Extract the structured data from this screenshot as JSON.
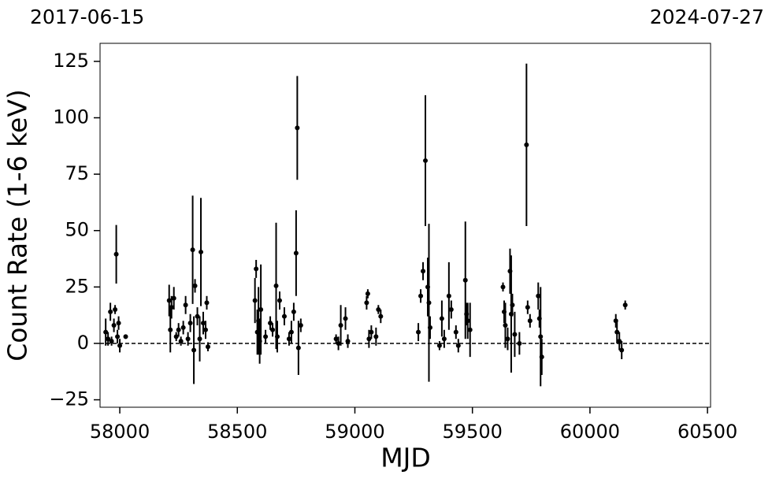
{
  "chart_data": {
    "type": "errorbar_scatter",
    "xlabel": "MJD",
    "ylabel": "Count Rate (1-6 keV)",
    "top_labels": [
      "2017-06-15",
      "2024-07-27"
    ],
    "xlim": [
      57916,
      60513
    ],
    "ylim": [
      -28.3,
      133
    ],
    "xticks": [
      58000,
      58500,
      59000,
      59500,
      60000,
      60500
    ],
    "yticks": [
      {
        "value": -25,
        "label": "−25"
      },
      0,
      25,
      50,
      75,
      100,
      125
    ],
    "hline": 0,
    "color": "#000000",
    "series": [
      {
        "name": "data",
        "color": "#000000",
        "x": [
          57940,
          57950,
          57960,
          57965,
          57975,
          57980,
          57985,
          57990,
          57995,
          58000,
          58025,
          58210,
          58215,
          58220,
          58230,
          58240,
          58250,
          58260,
          58270,
          58280,
          58290,
          58300,
          58310,
          58315,
          58320,
          58330,
          58340,
          58345,
          58355,
          58365,
          58370,
          58375,
          58575,
          58580,
          58585,
          58590,
          58595,
          58600,
          58620,
          58640,
          58650,
          58665,
          58670,
          58680,
          58700,
          58720,
          58730,
          58740,
          58750,
          58755,
          58760,
          58770,
          58920,
          58930,
          58940,
          58960,
          58970,
          59050,
          59055,
          59060,
          59070,
          59090,
          59100,
          59110,
          59270,
          59280,
          59290,
          59300,
          59310,
          59315,
          59320,
          59360,
          59370,
          59380,
          59400,
          59410,
          59430,
          59440,
          59470,
          59475,
          59480,
          59490,
          59630,
          59635,
          59640,
          59650,
          59660,
          59665,
          59670,
          59680,
          59700,
          59730,
          59735,
          59745,
          59780,
          59785,
          59790,
          59795,
          60110,
          60115,
          60125,
          60135,
          60150
        ],
        "values": [
          5,
          2,
          14,
          1,
          8,
          15,
          39.5,
          3,
          9,
          -1,
          3,
          19,
          6,
          16,
          20,
          3,
          6,
          1,
          7,
          17,
          2,
          9,
          41.5,
          -3,
          25.5,
          12,
          2,
          40.5,
          9,
          6,
          18,
          -1.5,
          19,
          33,
          5,
          10,
          1,
          15,
          3,
          9,
          6,
          25.5,
          3,
          19,
          12,
          2,
          5,
          14,
          40,
          95.5,
          -2,
          8,
          2,
          0,
          8,
          11,
          1,
          18,
          22,
          2,
          5,
          3,
          15,
          12,
          5,
          21,
          32,
          81,
          25,
          18,
          7,
          -1,
          11,
          2,
          21,
          15,
          5,
          -1,
          28,
          13,
          10,
          6,
          25,
          14,
          8,
          2,
          32,
          13,
          17,
          4,
          0,
          88,
          16,
          10,
          21,
          11,
          3,
          -6,
          10,
          5,
          1,
          -3,
          17
        ],
        "errors": [
          6,
          3,
          4,
          2,
          3,
          2,
          13,
          3,
          3,
          3,
          1,
          7,
          10,
          5,
          5,
          2,
          3,
          2,
          3,
          4,
          3,
          4,
          24,
          15,
          3,
          4,
          10,
          24,
          5,
          4,
          3,
          2,
          10,
          4,
          10,
          15,
          10,
          20,
          3,
          3,
          3,
          28,
          7,
          4,
          4,
          3,
          5,
          4,
          19,
          23,
          12,
          3,
          2,
          3,
          9,
          5,
          3,
          3,
          2,
          4,
          3,
          4,
          2,
          3,
          4,
          3,
          4,
          29,
          13,
          35,
          5,
          2,
          8,
          4,
          15,
          4,
          3,
          3,
          26,
          5,
          8,
          12,
          2,
          5,
          10,
          5,
          10,
          26,
          5,
          10,
          5,
          36,
          3,
          3,
          6,
          4,
          22,
          8,
          3,
          5,
          4,
          4,
          2
        ]
      }
    ]
  }
}
